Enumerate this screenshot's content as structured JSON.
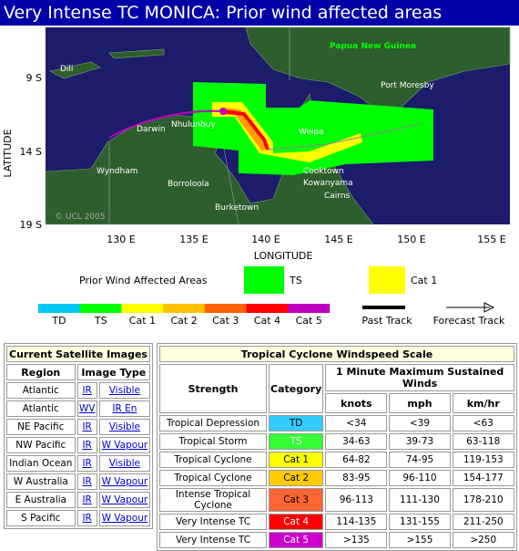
{
  "header": {
    "title": "Very Intense TC MONICA: Prior wind affected areas"
  },
  "map": {
    "y_axis_label": "LATITUDE",
    "x_axis_label": "LONGITUDE",
    "lat_ticks": [
      "9 S",
      "14 S",
      "19 S"
    ],
    "lon_ticks": [
      "130 E",
      "135 E",
      "140 E",
      "145 E",
      "150 E",
      "155 E"
    ],
    "places": [
      "Dili",
      "Papua New Guinea",
      "Port Moresby",
      "Darwin",
      "Nhulunbuy",
      "Weipa",
      "Wyndham",
      "Borroloola",
      "Cooktown",
      "Kowanyama",
      "Cairns",
      "Burketown"
    ],
    "credit": "© UCL 2005"
  },
  "legend": {
    "title": "Prior Wind Affected Areas",
    "areas": [
      "TS",
      "Cat 1"
    ],
    "scale": [
      "TD",
      "TS",
      "Cat 1",
      "Cat 2",
      "Cat 3",
      "Cat 4",
      "Cat 5"
    ],
    "past_track": "Past Track",
    "forecast_track": "Forecast Track"
  },
  "satellite_table": {
    "title": "Current Satellite Images",
    "headers": [
      "Region",
      "Image Type"
    ],
    "rows": [
      [
        "Atlantic",
        "IR",
        "Visible"
      ],
      [
        "Atlantic",
        "WV",
        "IR En"
      ],
      [
        "NE Pacific",
        "IR",
        "Visible"
      ],
      [
        "NW Pacific",
        "IR",
        "W Vapour"
      ],
      [
        "Indian Ocean",
        "IR",
        "Visible"
      ],
      [
        "W Australia",
        "IR",
        "W Vapour"
      ],
      [
        "E Australia",
        "IR",
        "W Vapour"
      ],
      [
        "S Pacific",
        "IR",
        "W Vapour"
      ]
    ]
  },
  "scale_table": {
    "title": "Tropical Cyclone Windspeed Scale",
    "headers": [
      "Strength",
      "Category",
      "1 Minute Maximum Sustained Winds"
    ],
    "units": [
      "knots",
      "mph",
      "km/hr"
    ],
    "rows": [
      [
        "Tropical Depression",
        "TD",
        "<34",
        "<39",
        "<63"
      ],
      [
        "Tropical Storm",
        "TS",
        "34-63",
        "39-73",
        "63-118"
      ],
      [
        "Tropical Cyclone",
        "Cat 1",
        "64-82",
        "74-95",
        "119-153"
      ],
      [
        "Tropical Cyclone",
        "Cat 2",
        "83-95",
        "96-110",
        "154-177"
      ],
      [
        "Intense Tropical Cyclone",
        "Cat 3",
        "96-113",
        "111-130",
        "178-210"
      ],
      [
        "Very Intense TC",
        "Cat 4",
        "114-135",
        "131-155",
        "211-250"
      ],
      [
        "Very Intense TC",
        "Cat 5",
        "&gt;135",
        "&gt;155",
        "&gt;250"
      ]
    ]
  }
}
